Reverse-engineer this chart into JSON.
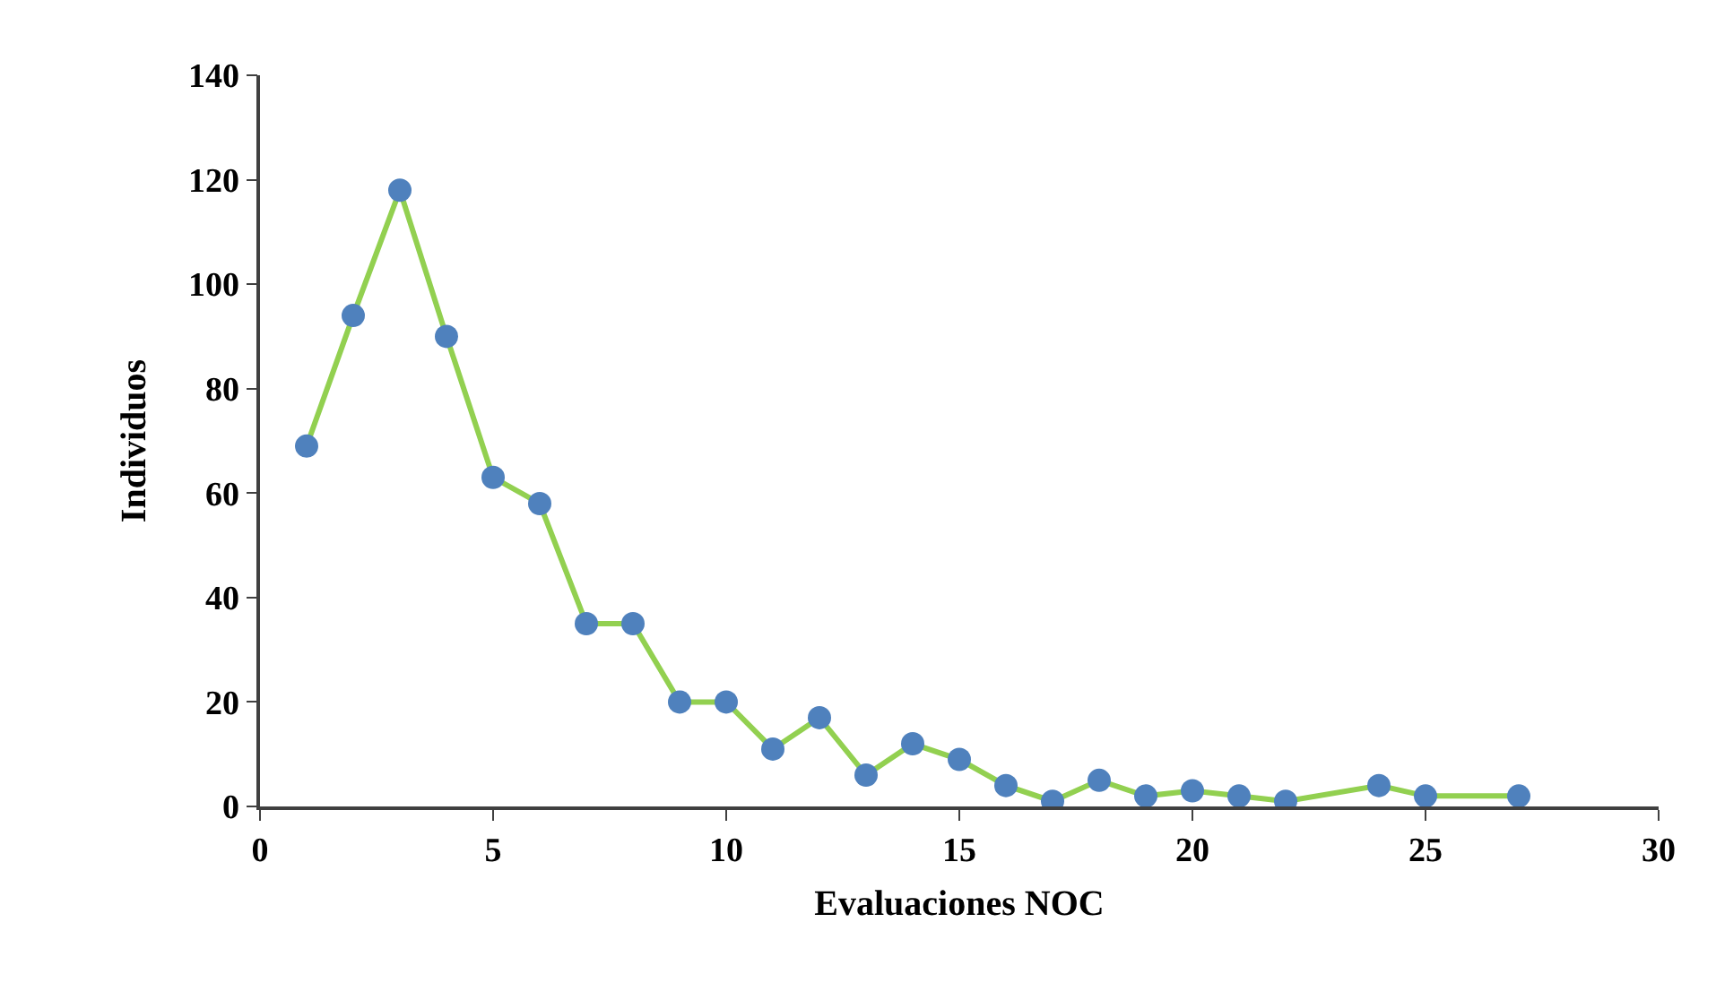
{
  "chart_data": {
    "type": "line",
    "xlabel": "Evaluaciones NOC",
    "ylabel": "Individuos",
    "x": [
      1,
      2,
      3,
      4,
      5,
      6,
      7,
      8,
      9,
      10,
      11,
      12,
      13,
      14,
      15,
      16,
      17,
      18,
      19,
      20,
      21,
      22,
      24,
      25,
      27
    ],
    "series": [
      {
        "color": "#92d050",
        "colors": [
          "#4f81bd",
          "#4f81bd",
          "#4f81bd",
          "#4f81bd",
          "#4f81bd",
          "#4f81bd",
          "#4f81bd",
          "#4f81bd",
          "#4f81bd",
          "#4f81bd",
          "#4f81bd",
          "#4f81bd",
          "#4f81bd",
          "#4f81bd",
          "#4f81bd",
          "#4f81bd",
          "#4f81bd",
          "#4f81bd",
          "#4f81bd",
          "#4f81bd",
          "#4f81bd",
          "#4f81bd",
          "#4f81bd",
          "#4f81bd",
          "#4f81bd"
        ],
        "values": [
          69,
          94,
          118,
          90,
          63,
          58,
          35,
          35,
          20,
          20,
          11,
          17,
          6,
          12,
          9,
          4,
          1,
          5,
          2,
          3,
          2,
          1,
          4,
          2,
          2
        ]
      }
    ],
    "marker": "circle",
    "line_style": "solid",
    "xlim": [
      0,
      30
    ],
    "xticks": [
      0,
      5,
      10,
      15,
      20,
      25,
      30
    ],
    "ylim": [
      0,
      140
    ],
    "yticks": [
      0,
      20,
      40,
      60,
      80,
      100,
      120,
      140
    ]
  }
}
